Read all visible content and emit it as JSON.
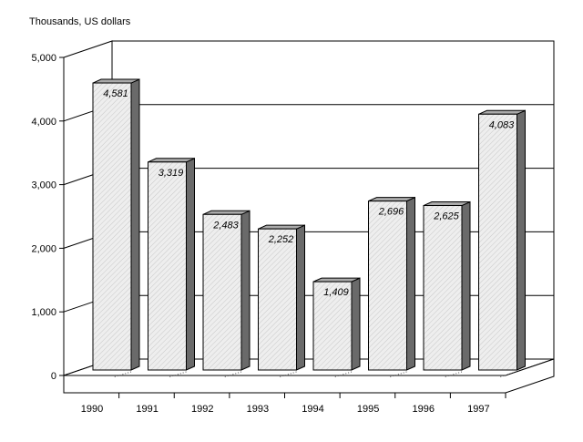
{
  "chart_data": {
    "type": "bar",
    "title": "",
    "ylabel": "Thousands, US dollars",
    "xlabel": "",
    "categories": [
      "1990",
      "1991",
      "1992",
      "1993",
      "1994",
      "1995",
      "1996",
      "1997"
    ],
    "values": [
      4581,
      3319,
      2483,
      2252,
      1409,
      2696,
      2625,
      4083
    ],
    "value_labels": [
      "4,581",
      "3,319",
      "2,483",
      "2,252",
      "1,409",
      "2,696",
      "2,625",
      "4,083"
    ],
    "yticks": [
      0,
      1000,
      2000,
      3000,
      4000,
      5000
    ],
    "ytick_labels": [
      "0",
      "1,000",
      "2,000",
      "3,000",
      "4,000",
      "5,000"
    ],
    "ylim": [
      0,
      5000
    ],
    "grid": true,
    "style": "3d",
    "colors": {
      "bar_face": "#e8e8e8",
      "bar_side": "#6a6a6a",
      "bar_top": "#aaaaaa",
      "grid": "#000000"
    }
  }
}
